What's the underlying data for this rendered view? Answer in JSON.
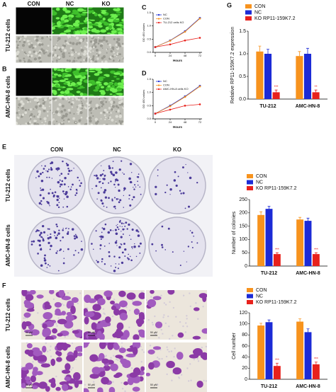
{
  "panel_labels": [
    "A",
    "B",
    "C",
    "D",
    "E",
    "F",
    "G"
  ],
  "panel_a": {
    "columns": [
      "CON",
      "NC",
      "KO"
    ],
    "rows": [
      "TU-212 cells",
      "AMC-HN-8 cells"
    ]
  },
  "panel_e": {
    "columns": [
      "CON",
      "NC",
      "KO"
    ],
    "rows": [
      "TU-212 cells",
      "AMC-HN-8 cells"
    ]
  },
  "panel_f": {
    "rows": [
      "TU-212 cells",
      "AMC-HN-8 cells"
    ],
    "scale_bar": "50 μM"
  },
  "chart_data": [
    {
      "type": "line",
      "xlabel": "Hours",
      "ylabel": "OD 450 values",
      "x": [
        0,
        24,
        48,
        72
      ],
      "xlim": [
        0,
        72
      ],
      "xticks": [
        0,
        24,
        48,
        72
      ],
      "ylim": [
        0,
        1.5
      ],
      "yticks": [
        {
          "value": 0,
          "label": "0.0"
        },
        {
          "value": 0.5,
          "label": "0.5"
        },
        {
          "value": 1,
          "label": "1.0"
        },
        {
          "value": 1.5,
          "label": "1.5"
        }
      ],
      "legend": "upper left",
      "series": [
        {
          "name": "NC",
          "color": "#1c2bd6",
          "marker": "square",
          "values": [
            0.2,
            0.45,
            0.8,
            1.3
          ]
        },
        {
          "name": "CON",
          "color": "#f7931e",
          "marker": "circle",
          "values": [
            0.2,
            0.44,
            0.78,
            1.28
          ]
        },
        {
          "name": "TU-212 cells KO",
          "color": "#e8211c",
          "marker": "circle",
          "values": [
            0.2,
            0.3,
            0.45,
            0.55
          ]
        }
      ]
    },
    {
      "type": "line",
      "xlabel": "Hours",
      "ylabel": "OD 450 values",
      "x": [
        0,
        24,
        48,
        72
      ],
      "xlim": [
        0,
        72
      ],
      "xticks": [
        0,
        24,
        48,
        72
      ],
      "ylim": [
        0,
        1.5
      ],
      "yticks": [
        {
          "value": 0,
          "label": "0.0"
        },
        {
          "value": 0.5,
          "label": "0.5"
        },
        {
          "value": 1,
          "label": "1.0"
        },
        {
          "value": 1.5,
          "label": "1.5"
        }
      ],
      "legend": "upper left",
      "series": [
        {
          "name": "NC",
          "color": "#1c2bd6",
          "marker": "square",
          "values": [
            0.2,
            0.5,
            0.85,
            1.25
          ]
        },
        {
          "name": "CON",
          "color": "#f7931e",
          "marker": "circle",
          "values": [
            0.2,
            0.48,
            0.83,
            1.23
          ]
        },
        {
          "name": "AMC-HN-8 cells KO",
          "color": "#e8211c",
          "marker": "circle",
          "values": [
            0.2,
            0.35,
            0.5,
            0.55
          ]
        }
      ]
    },
    {
      "type": "bar",
      "ylabel": "Relative RP11-159K7.2 expression",
      "categories": [
        "TU-212",
        "AMC-HN-8"
      ],
      "ylim": [
        0,
        1.5
      ],
      "yticks": [
        {
          "value": 0,
          "label": "0.0"
        },
        {
          "value": 0.5,
          "label": "0.5"
        },
        {
          "value": 1,
          "label": "1.0"
        },
        {
          "value": 1.5,
          "label": "1.5"
        }
      ],
      "legend": "top",
      "series": [
        {
          "name": "CON",
          "color": "#f7931e",
          "values": [
            1.05,
            0.95
          ],
          "errors": [
            0.12,
            0.1
          ]
        },
        {
          "name": "NC",
          "color": "#1c2bd6",
          "values": [
            1.0,
            1.0
          ],
          "errors": [
            0.1,
            0.12
          ]
        },
        {
          "name": "KO RP11-159K7.2",
          "color": "#e8211c",
          "values": [
            0.15,
            0.15
          ],
          "errors": [
            0.05,
            0.05
          ]
        }
      ],
      "annotations": [
        "***",
        "**"
      ]
    },
    {
      "type": "bar",
      "ylabel": "Number of colonies",
      "categories": [
        "TU-212",
        "AMC-HN-8"
      ],
      "ylim": [
        0,
        250
      ],
      "yticks": [
        0,
        50,
        100,
        150,
        200,
        250
      ],
      "legend": "top",
      "series": [
        {
          "name": "CON",
          "color": "#f7931e",
          "values": [
            192,
            175
          ],
          "errors": [
            12,
            8
          ]
        },
        {
          "name": "NC",
          "color": "#1c2bd6",
          "values": [
            215,
            170
          ],
          "errors": [
            10,
            10
          ]
        },
        {
          "name": "KO RP11-159K7.2",
          "color": "#e8211c",
          "values": [
            45,
            45
          ],
          "errors": [
            5,
            5
          ]
        }
      ],
      "annotations": [
        "***",
        "***"
      ]
    },
    {
      "type": "bar",
      "ylabel": "Cell number",
      "categories": [
        "TU-212",
        "AMC-HN-8"
      ],
      "ylim": [
        0,
        120
      ],
      "yticks": [
        0,
        20,
        40,
        60,
        80,
        100,
        120
      ],
      "legend": "top",
      "series": [
        {
          "name": "CON",
          "color": "#f7931e",
          "values": [
            97,
            104
          ],
          "errors": [
            4,
            5
          ]
        },
        {
          "name": "NC",
          "color": "#1c2bd6",
          "values": [
            103,
            85
          ],
          "errors": [
            4,
            6
          ]
        },
        {
          "name": "KO RP11-159K7.2",
          "color": "#e8211c",
          "values": [
            24,
            27
          ],
          "errors": [
            5,
            4
          ]
        }
      ],
      "annotations": [
        "***",
        "***"
      ]
    }
  ]
}
